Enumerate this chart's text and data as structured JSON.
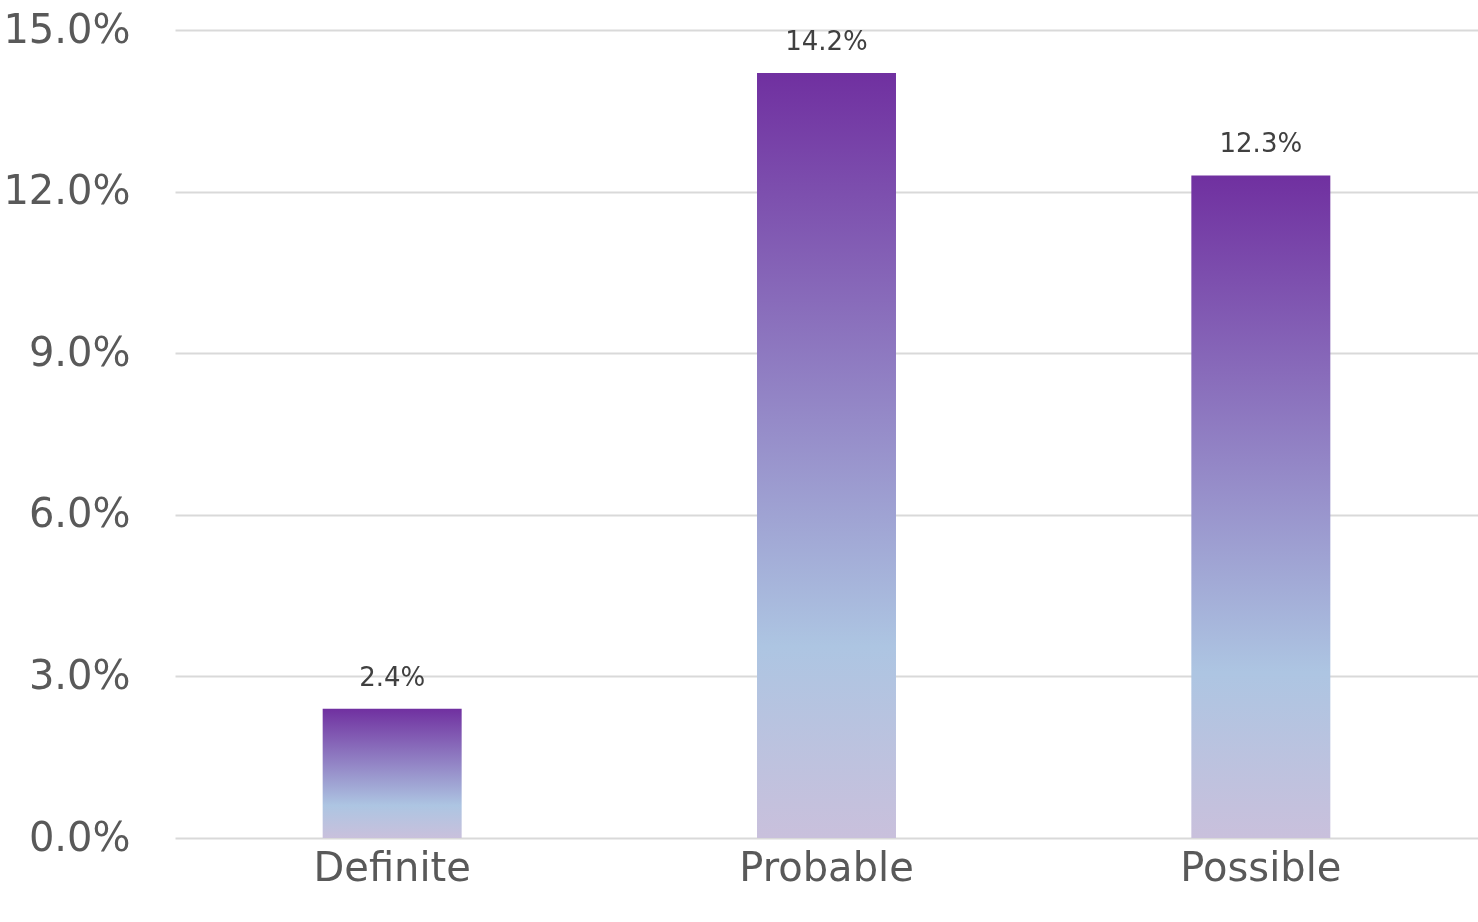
{
  "chart_data": {
    "type": "bar",
    "categories": [
      "Definite",
      "Probable",
      "Possible"
    ],
    "values": [
      2.4,
      14.2,
      12.3
    ],
    "value_labels": [
      "2.4%",
      "14.2%",
      "12.3%"
    ],
    "color": "#7030a0",
    "ylim": [
      0,
      15
    ],
    "yticks": [
      {
        "value": 0,
        "label": "0.0%"
      },
      {
        "value": 3,
        "label": "3.0%"
      },
      {
        "value": 6,
        "label": "6.0%"
      },
      {
        "value": 9,
        "label": "9.0%"
      },
      {
        "value": 12,
        "label": "12.0%"
      },
      {
        "value": 15,
        "label": "15.0%"
      }
    ],
    "grid": "y"
  }
}
